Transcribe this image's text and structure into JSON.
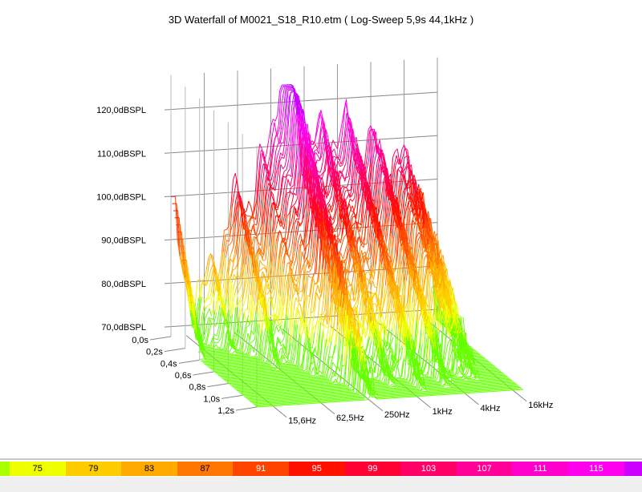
{
  "chart_data": {
    "type": "waterfall-3d",
    "title": "3D Waterfall of M0021_S18_R10.etm ( Log-Sweep 5,9s 44,1kHz )",
    "z_ticks": [
      "70,0dBSPL",
      "80,0dBSPL",
      "90,0dBSPL",
      "100,0dBSPL",
      "110,0dBSPL",
      "120,0dBSPL"
    ],
    "z_values": [
      70,
      80,
      90,
      100,
      110,
      120
    ],
    "z_range": [
      70,
      125
    ],
    "time_ticks": [
      "0,0s",
      "0,2s",
      "0,4s",
      "0,6s",
      "0,8s",
      "1,0s",
      "1,2s"
    ],
    "time_values": [
      0,
      0.2,
      0.4,
      0.6,
      0.8,
      1.0,
      1.2
    ],
    "freq_ticks": [
      "15,6Hz",
      "62,5Hz",
      "250Hz",
      "1kHz",
      "4kHz",
      "16kHz"
    ],
    "freq_values": [
      15.6,
      62.5,
      250,
      1000,
      4000,
      16000
    ],
    "peak_level_db": 123,
    "colorbar": {
      "levels": [
        "75",
        "79",
        "83",
        "87",
        "91",
        "95",
        "99",
        "103",
        "107",
        "111",
        "115"
      ],
      "colors": [
        "#eeff00",
        "#ffcc00",
        "#ffaa00",
        "#ff7700",
        "#ff4400",
        "#ff1100",
        "#ff0033",
        "#ff0066",
        "#ff0099",
        "#ff00cc",
        "#ff00ee"
      ],
      "low_color": "#aaff00",
      "high_color": "#cc00ff"
    }
  }
}
